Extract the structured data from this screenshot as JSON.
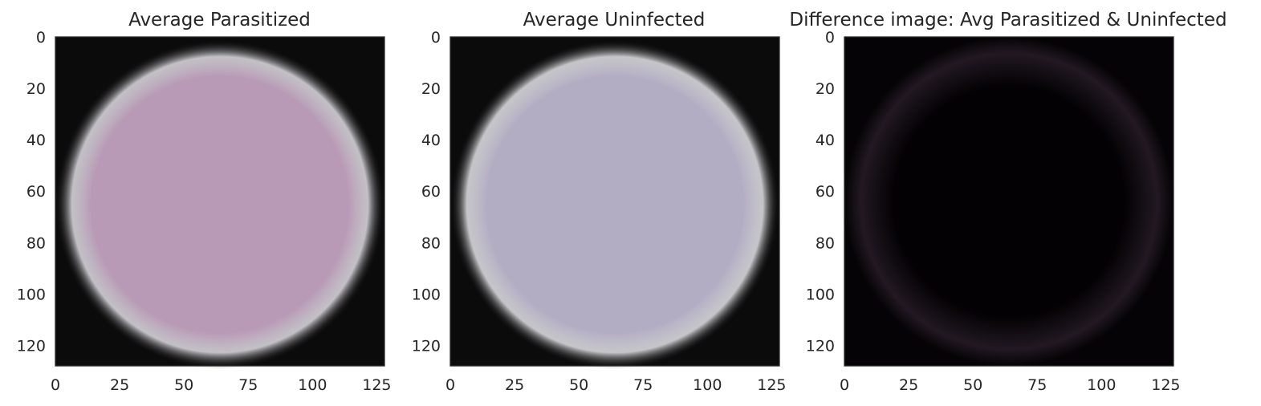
{
  "chart_data": [
    {
      "type": "image",
      "title": "Average Parasitized",
      "xlim": [
        0,
        128
      ],
      "ylim": [
        128,
        0
      ],
      "xticks": [
        "0",
        "25",
        "50",
        "75",
        "100",
        "125"
      ],
      "yticks": [
        "0",
        "20",
        "40",
        "60",
        "80",
        "100",
        "120"
      ],
      "image": {
        "kind": "disc",
        "center_color": "#b89ab6",
        "edge_color": "#e2e0e6",
        "background": "#0c0b0c"
      }
    },
    {
      "type": "image",
      "title": "Average Uninfected",
      "xlim": [
        0,
        128
      ],
      "ylim": [
        128,
        0
      ],
      "xticks": [
        "0",
        "25",
        "50",
        "75",
        "100",
        "125"
      ],
      "yticks": [
        "0",
        "20",
        "40",
        "60",
        "80",
        "100",
        "120"
      ],
      "image": {
        "kind": "disc",
        "center_color": "#b3adc4",
        "edge_color": "#e6e6ea",
        "background": "#0c0b0c"
      }
    },
    {
      "type": "image",
      "title": "Difference image: Avg Parasitized & Uninfected",
      "xlim": [
        0,
        128
      ],
      "ylim": [
        128,
        0
      ],
      "xticks": [
        "0",
        "25",
        "50",
        "75",
        "100",
        "125"
      ],
      "yticks": [
        "0",
        "20",
        "40",
        "60",
        "80",
        "100",
        "120"
      ],
      "image": {
        "kind": "difference",
        "center_color": "#020002",
        "edge_color": "#3a2a3c",
        "background": "#050305"
      }
    }
  ]
}
